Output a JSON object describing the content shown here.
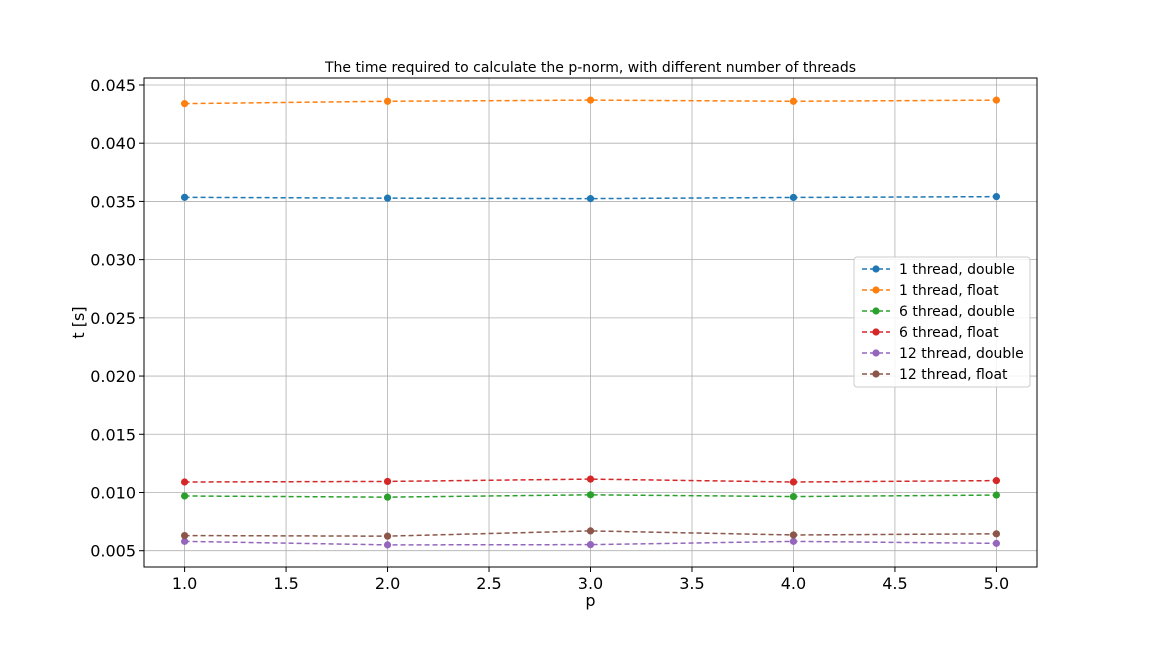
{
  "chart_data": {
    "type": "line",
    "title": "The time required to calculate the p-norm, with different number of threads",
    "xlabel": "p",
    "ylabel": "t [s]",
    "xlim": [
      0.8,
      5.2
    ],
    "ylim": [
      0.0036,
      0.0456
    ],
    "xticks": [
      1.0,
      1.5,
      2.0,
      2.5,
      3.0,
      3.5,
      4.0,
      4.5,
      5.0
    ],
    "xtick_labels": [
      "1.0",
      "1.5",
      "2.0",
      "2.5",
      "3.0",
      "3.5",
      "4.0",
      "4.5",
      "5.0"
    ],
    "yticks": [
      0.005,
      0.01,
      0.015,
      0.02,
      0.025,
      0.03,
      0.035,
      0.04,
      0.045
    ],
    "ytick_labels": [
      "0.005",
      "0.010",
      "0.015",
      "0.020",
      "0.025",
      "0.030",
      "0.035",
      "0.040",
      "0.045"
    ],
    "grid": true,
    "legend_position": "center-right",
    "x": [
      1,
      2,
      3,
      4,
      5
    ],
    "series": [
      {
        "name": "1 thread, double",
        "color": "#1f77b4",
        "values": [
          0.03535,
          0.03528,
          0.03524,
          0.03534,
          0.03541
        ]
      },
      {
        "name": "1 thread, float",
        "color": "#ff7f0e",
        "values": [
          0.0434,
          0.0436,
          0.0437,
          0.0436,
          0.0437
        ]
      },
      {
        "name": "6 thread, double",
        "color": "#2ca02c",
        "values": [
          0.0097,
          0.0096,
          0.0098,
          0.00965,
          0.00978
        ]
      },
      {
        "name": "6 thread, float",
        "color": "#d62728",
        "values": [
          0.0109,
          0.01095,
          0.01115,
          0.0109,
          0.01102
        ]
      },
      {
        "name": "12 thread, double",
        "color": "#9467bd",
        "values": [
          0.0058,
          0.0055,
          0.00552,
          0.0058,
          0.00563
        ]
      },
      {
        "name": "12 thread, float",
        "color": "#8c564b",
        "values": [
          0.0063,
          0.00625,
          0.0067,
          0.00635,
          0.00645
        ]
      }
    ]
  }
}
